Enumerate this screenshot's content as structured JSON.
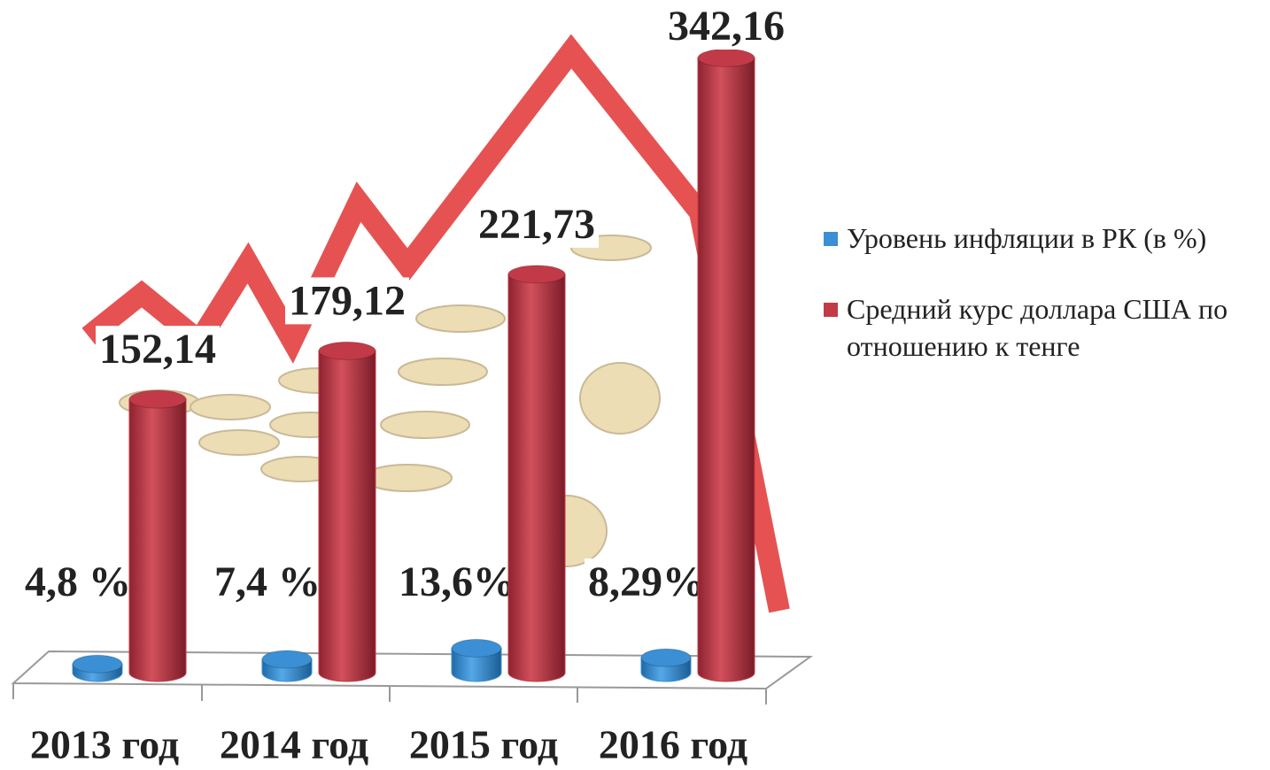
{
  "chart_data": {
    "type": "bar",
    "categories": [
      "2013 год",
      "2014 год",
      "2015 год",
      "2016 год"
    ],
    "series": [
      {
        "name": "Уровень инфляции в РК (в %)",
        "color": "#3b8fd4",
        "values": [
          4.8,
          7.4,
          13.6,
          8.29
        ],
        "value_labels": [
          "4,8 %",
          "7,4 %",
          "13,6%",
          "8,29%"
        ]
      },
      {
        "name": "Средний курс доллара США по отношению к тенге",
        "color": "#c23a47",
        "values": [
          152.14,
          179.12,
          221.73,
          342.16
        ],
        "value_labels": [
          "152,14",
          "179,12",
          "221,73",
          "342,16"
        ]
      }
    ]
  }
}
